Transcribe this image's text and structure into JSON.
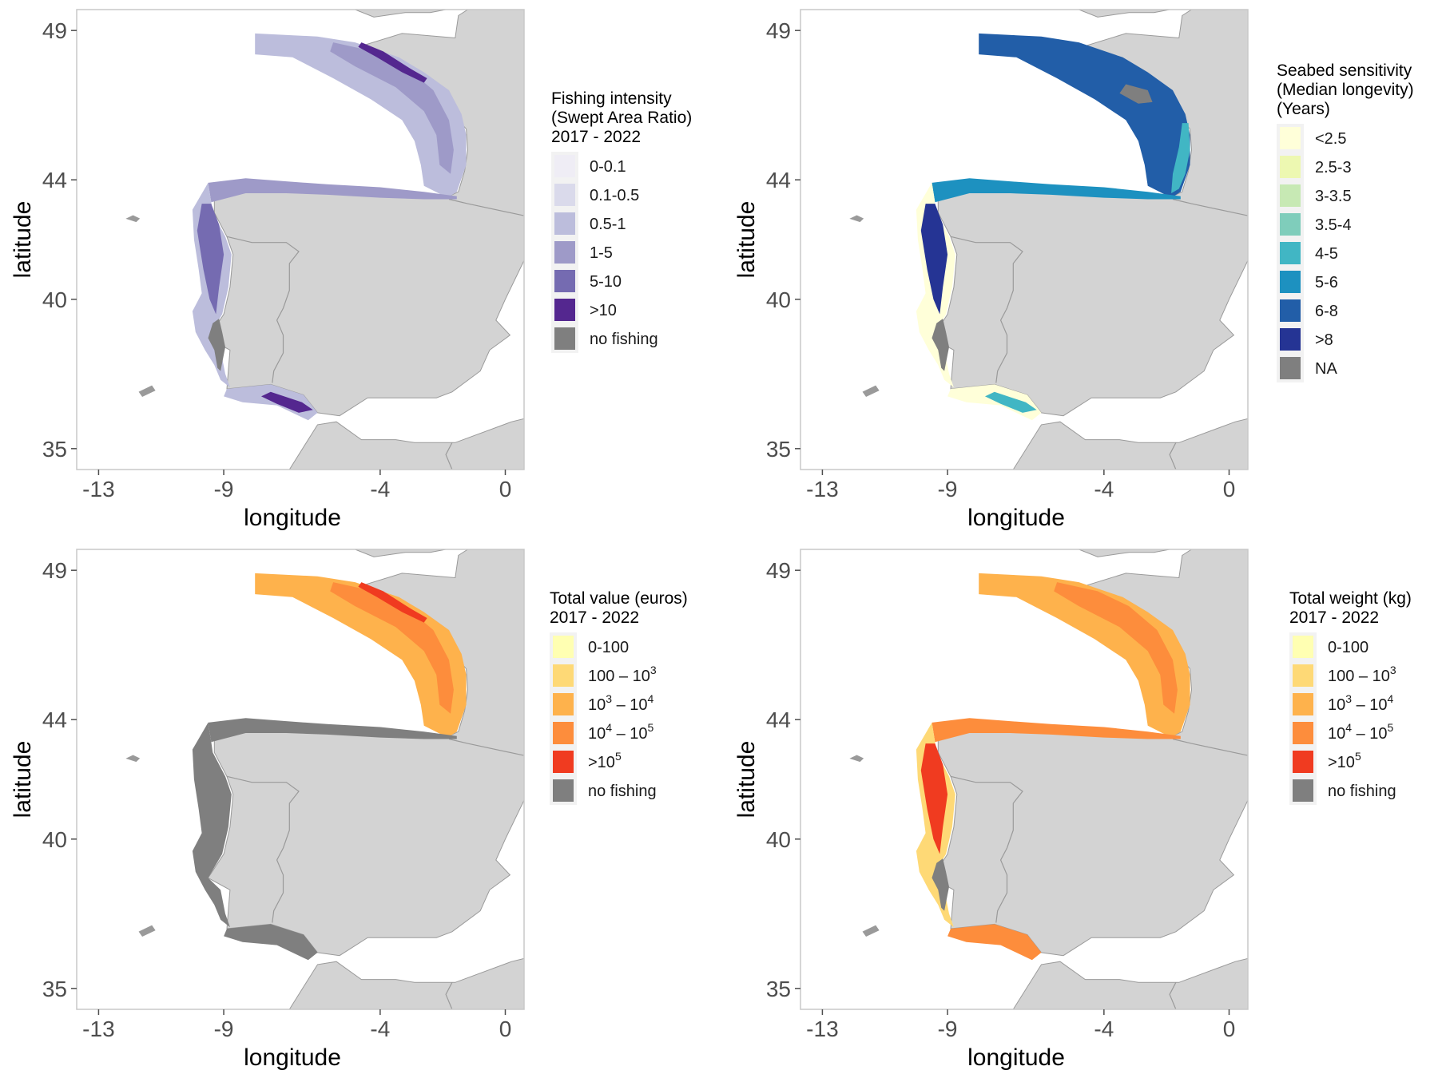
{
  "axes": {
    "x_title": "longitude",
    "y_title": "latitude",
    "x_ticks": [
      {
        "value": -13,
        "label": "-13"
      },
      {
        "value": -9,
        "label": "-9"
      },
      {
        "value": -4,
        "label": "-4"
      },
      {
        "value": 0,
        "label": "0"
      }
    ],
    "y_ticks": [
      {
        "value": 49,
        "label": "49"
      },
      {
        "value": 44,
        "label": "44"
      },
      {
        "value": 40,
        "label": "40"
      },
      {
        "value": 35,
        "label": "35"
      }
    ],
    "x_range": [
      -13.7,
      0.6
    ],
    "y_range": [
      34.3,
      49.7
    ]
  },
  "colors": {
    "land": "#d3d3d3",
    "land_border": "#9a9a9a",
    "sea": "#ffffff",
    "panel_border": "#c8c8c8",
    "tick": "#4d4d4d",
    "tick_label": "#4d4d4d",
    "no_fishing": "#7f7f7f"
  },
  "panels": [
    {
      "id": "fishing-intensity",
      "legend": {
        "title_lines": [
          "Fishing intensity",
          "(Swept Area Ratio)",
          " 2017 - 2022"
        ],
        "items": [
          {
            "label": "0-0.1",
            "color": "#efedf5"
          },
          {
            "label": "0.1-0.5",
            "color": "#dadaeb"
          },
          {
            "label": "0.5-1",
            "color": "#bcbddc"
          },
          {
            "label": "1-5",
            "color": "#9e9ac8"
          },
          {
            "label": "5-10",
            "color": "#756bb1"
          },
          {
            "label": ">10",
            "color": "#54278f"
          },
          {
            "label": "no fishing",
            "color": "#7f7f7f"
          }
        ]
      },
      "layers": [
        {
          "zone": "bay",
          "color": "#bcbddc"
        },
        {
          "zone": "bay_inner",
          "color": "#9e9ac8"
        },
        {
          "zone": "north_coast",
          "color": "#9e9ac8"
        },
        {
          "zone": "west_coast",
          "color": "#bcbddc"
        },
        {
          "zone": "west_inner",
          "color": "#756bb1"
        },
        {
          "zone": "south_coast",
          "color": "#bcbddc"
        },
        {
          "zone": "south_inner",
          "color": "#54278f"
        },
        {
          "zone": "bay_hot",
          "color": "#54278f"
        },
        {
          "zone": "lisbon_grey",
          "color": "#7f7f7f"
        }
      ]
    },
    {
      "id": "seabed-sensitivity",
      "legend": {
        "title_lines": [
          "Seabed sensitivity",
          "(Median longevity)",
          "(Years)"
        ],
        "items": [
          {
            "label": "<2.5",
            "color": "#ffffd9"
          },
          {
            "label": "2.5-3",
            "color": "#edf8b1"
          },
          {
            "label": "3-3.5",
            "color": "#c7e9b4"
          },
          {
            "label": "3.5-4",
            "color": "#7fcdbb"
          },
          {
            "label": "4-5",
            "color": "#41b6c4"
          },
          {
            "label": "5-6",
            "color": "#1d91c0"
          },
          {
            "label": "6-8",
            "color": "#225ea8"
          },
          {
            "label": ">8",
            "color": "#253494"
          },
          {
            "label": "NA",
            "color": "#7f7f7f"
          }
        ]
      },
      "layers": [
        {
          "zone": "bay",
          "color": "#225ea8"
        },
        {
          "zone": "bay_shelf",
          "color": "#41b6c4"
        },
        {
          "zone": "north_coast",
          "color": "#1d91c0"
        },
        {
          "zone": "west_coast",
          "color": "#ffffd9"
        },
        {
          "zone": "west_inner",
          "color": "#253494"
        },
        {
          "zone": "south_coast",
          "color": "#ffffd9"
        },
        {
          "zone": "south_inner",
          "color": "#41b6c4"
        },
        {
          "zone": "bay_grey",
          "color": "#7f7f7f"
        },
        {
          "zone": "lisbon_grey",
          "color": "#7f7f7f"
        }
      ]
    },
    {
      "id": "total-value",
      "legend": {
        "title_lines": [
          "Total value (euros)",
          " 2017 - 2022"
        ],
        "items": [
          {
            "label": "0-100",
            "color": "#ffffb2"
          },
          {
            "label": "100 – 10^3",
            "color": "#fed976"
          },
          {
            "label": "10^3 – 10^4",
            "color": "#feb24c"
          },
          {
            "label": "10^4 – 10^5",
            "color": "#fd8d3c"
          },
          {
            "label": ">10^5",
            "color": "#f03b20"
          },
          {
            "label": "no fishing",
            "color": "#7f7f7f"
          }
        ]
      },
      "layers": [
        {
          "zone": "bay",
          "color": "#feb24c"
        },
        {
          "zone": "bay_inner",
          "color": "#fd8d3c"
        },
        {
          "zone": "bay_hot",
          "color": "#f03b20"
        },
        {
          "zone": "north_coast",
          "color": "#7f7f7f"
        },
        {
          "zone": "west_coast",
          "color": "#7f7f7f"
        },
        {
          "zone": "south_coast",
          "color": "#7f7f7f"
        }
      ]
    },
    {
      "id": "total-weight",
      "legend": {
        "title_lines": [
          "Total weight (kg)",
          " 2017 - 2022"
        ],
        "items": [
          {
            "label": "0-100",
            "color": "#ffffb2"
          },
          {
            "label": "100 – 10^3",
            "color": "#fed976"
          },
          {
            "label": "10^3 – 10^4",
            "color": "#feb24c"
          },
          {
            "label": "10^4 – 10^5",
            "color": "#fd8d3c"
          },
          {
            "label": ">10^5",
            "color": "#f03b20"
          },
          {
            "label": "no fishing",
            "color": "#7f7f7f"
          }
        ]
      },
      "layers": [
        {
          "zone": "bay",
          "color": "#feb24c"
        },
        {
          "zone": "bay_inner",
          "color": "#fd8d3c"
        },
        {
          "zone": "north_coast",
          "color": "#fd8d3c"
        },
        {
          "zone": "west_coast",
          "color": "#fed976"
        },
        {
          "zone": "west_inner",
          "color": "#f03b20"
        },
        {
          "zone": "south_coast",
          "color": "#fd8d3c"
        },
        {
          "zone": "lisbon_grey",
          "color": "#7f7f7f"
        }
      ]
    }
  ]
}
